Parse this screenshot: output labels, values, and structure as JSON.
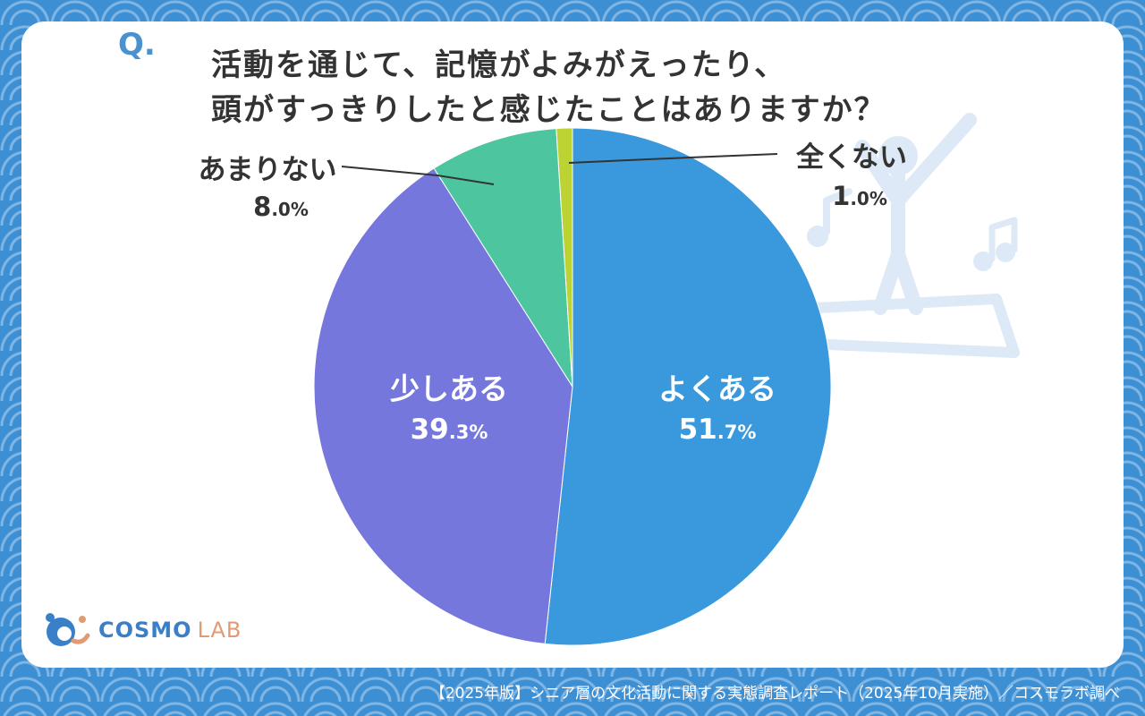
{
  "question_mark": "Q.",
  "title_line1": "活動を通じて、記憶がよみがえったり、",
  "title_line2": "頭がすっきりしたと感じたことはありますか？",
  "chart_data": {
    "type": "pie",
    "title": "活動を通じて、記憶がよみがえったり、頭がすっきりしたと感じたことはありますか？",
    "labels": [
      "よくある",
      "少しある",
      "あまりない",
      "全くない"
    ],
    "values": [
      51.7,
      39.3,
      8.0,
      1.0
    ],
    "value_labels": [
      {
        "int": "51",
        "dec": ".7%"
      },
      {
        "int": "39",
        "dec": ".3%"
      },
      {
        "int": "8",
        "dec": ".0%"
      },
      {
        "int": "1",
        "dec": ".0%"
      }
    ],
    "colors": [
      "#3a99dd",
      "#7577dd",
      "#4dc6a0",
      "#bdd333"
    ],
    "start": "12 o'clock",
    "direction": "clockwise"
  },
  "brand": {
    "cosmo": "COSMO",
    "lab": "LAB"
  },
  "footer": "【2025年版】シニア層の文化活動に関する実態調査レポート（2025年10月実施）／コスモラボ調べ"
}
